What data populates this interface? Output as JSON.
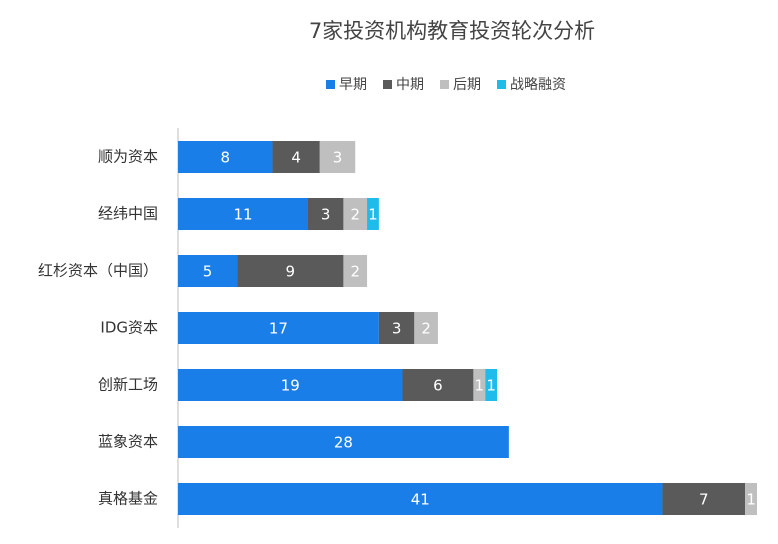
{
  "chart_data": {
    "type": "bar",
    "orientation": "horizontal",
    "stacked": true,
    "title": "7家投资机构教育投资轮次分析",
    "categories": [
      "顺为资本",
      "经纬中国",
      "红杉资本（中国）",
      "IDG资本",
      "创新工场",
      "蓝象资本",
      "真格基金"
    ],
    "series": [
      {
        "name": "早期",
        "color": "#1a7ee8",
        "values": [
          8,
          11,
          5,
          17,
          19,
          28,
          41
        ]
      },
      {
        "name": "中期",
        "color": "#5a5a5a",
        "values": [
          4,
          3,
          9,
          3,
          6,
          null,
          7
        ]
      },
      {
        "name": "后期",
        "color": "#bfbfbf",
        "values": [
          3,
          2,
          2,
          2,
          1,
          null,
          1
        ]
      },
      {
        "name": "战略融资",
        "color": "#1fbbea",
        "values": [
          null,
          1,
          null,
          null,
          1,
          null,
          null
        ]
      }
    ],
    "legend": "top"
  }
}
